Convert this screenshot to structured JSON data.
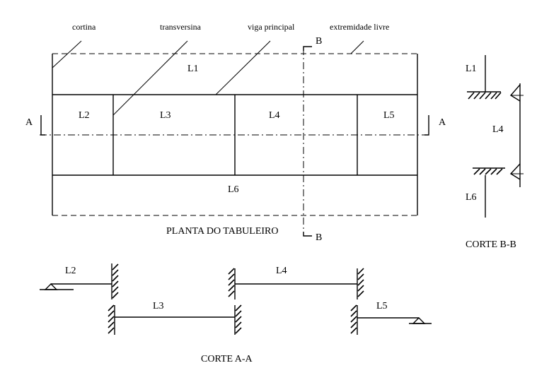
{
  "callouts": {
    "cortina": "cortina",
    "transversina": "transversina",
    "viga_principal": "viga principal",
    "extremidade_livre": "extremidade livre"
  },
  "plan": {
    "title": "PLANTA DO TABULEIRO",
    "slabs": [
      "L1",
      "L2",
      "L3",
      "L4",
      "L5",
      "L6"
    ],
    "section_a": "A",
    "section_b": "B"
  },
  "section_bb": {
    "title": "CORTE B-B",
    "labels": [
      "L1",
      "L4",
      "L6"
    ]
  },
  "section_aa": {
    "title": "CORTE A-A",
    "labels": [
      "L2",
      "L3",
      "L4",
      "L5"
    ]
  }
}
